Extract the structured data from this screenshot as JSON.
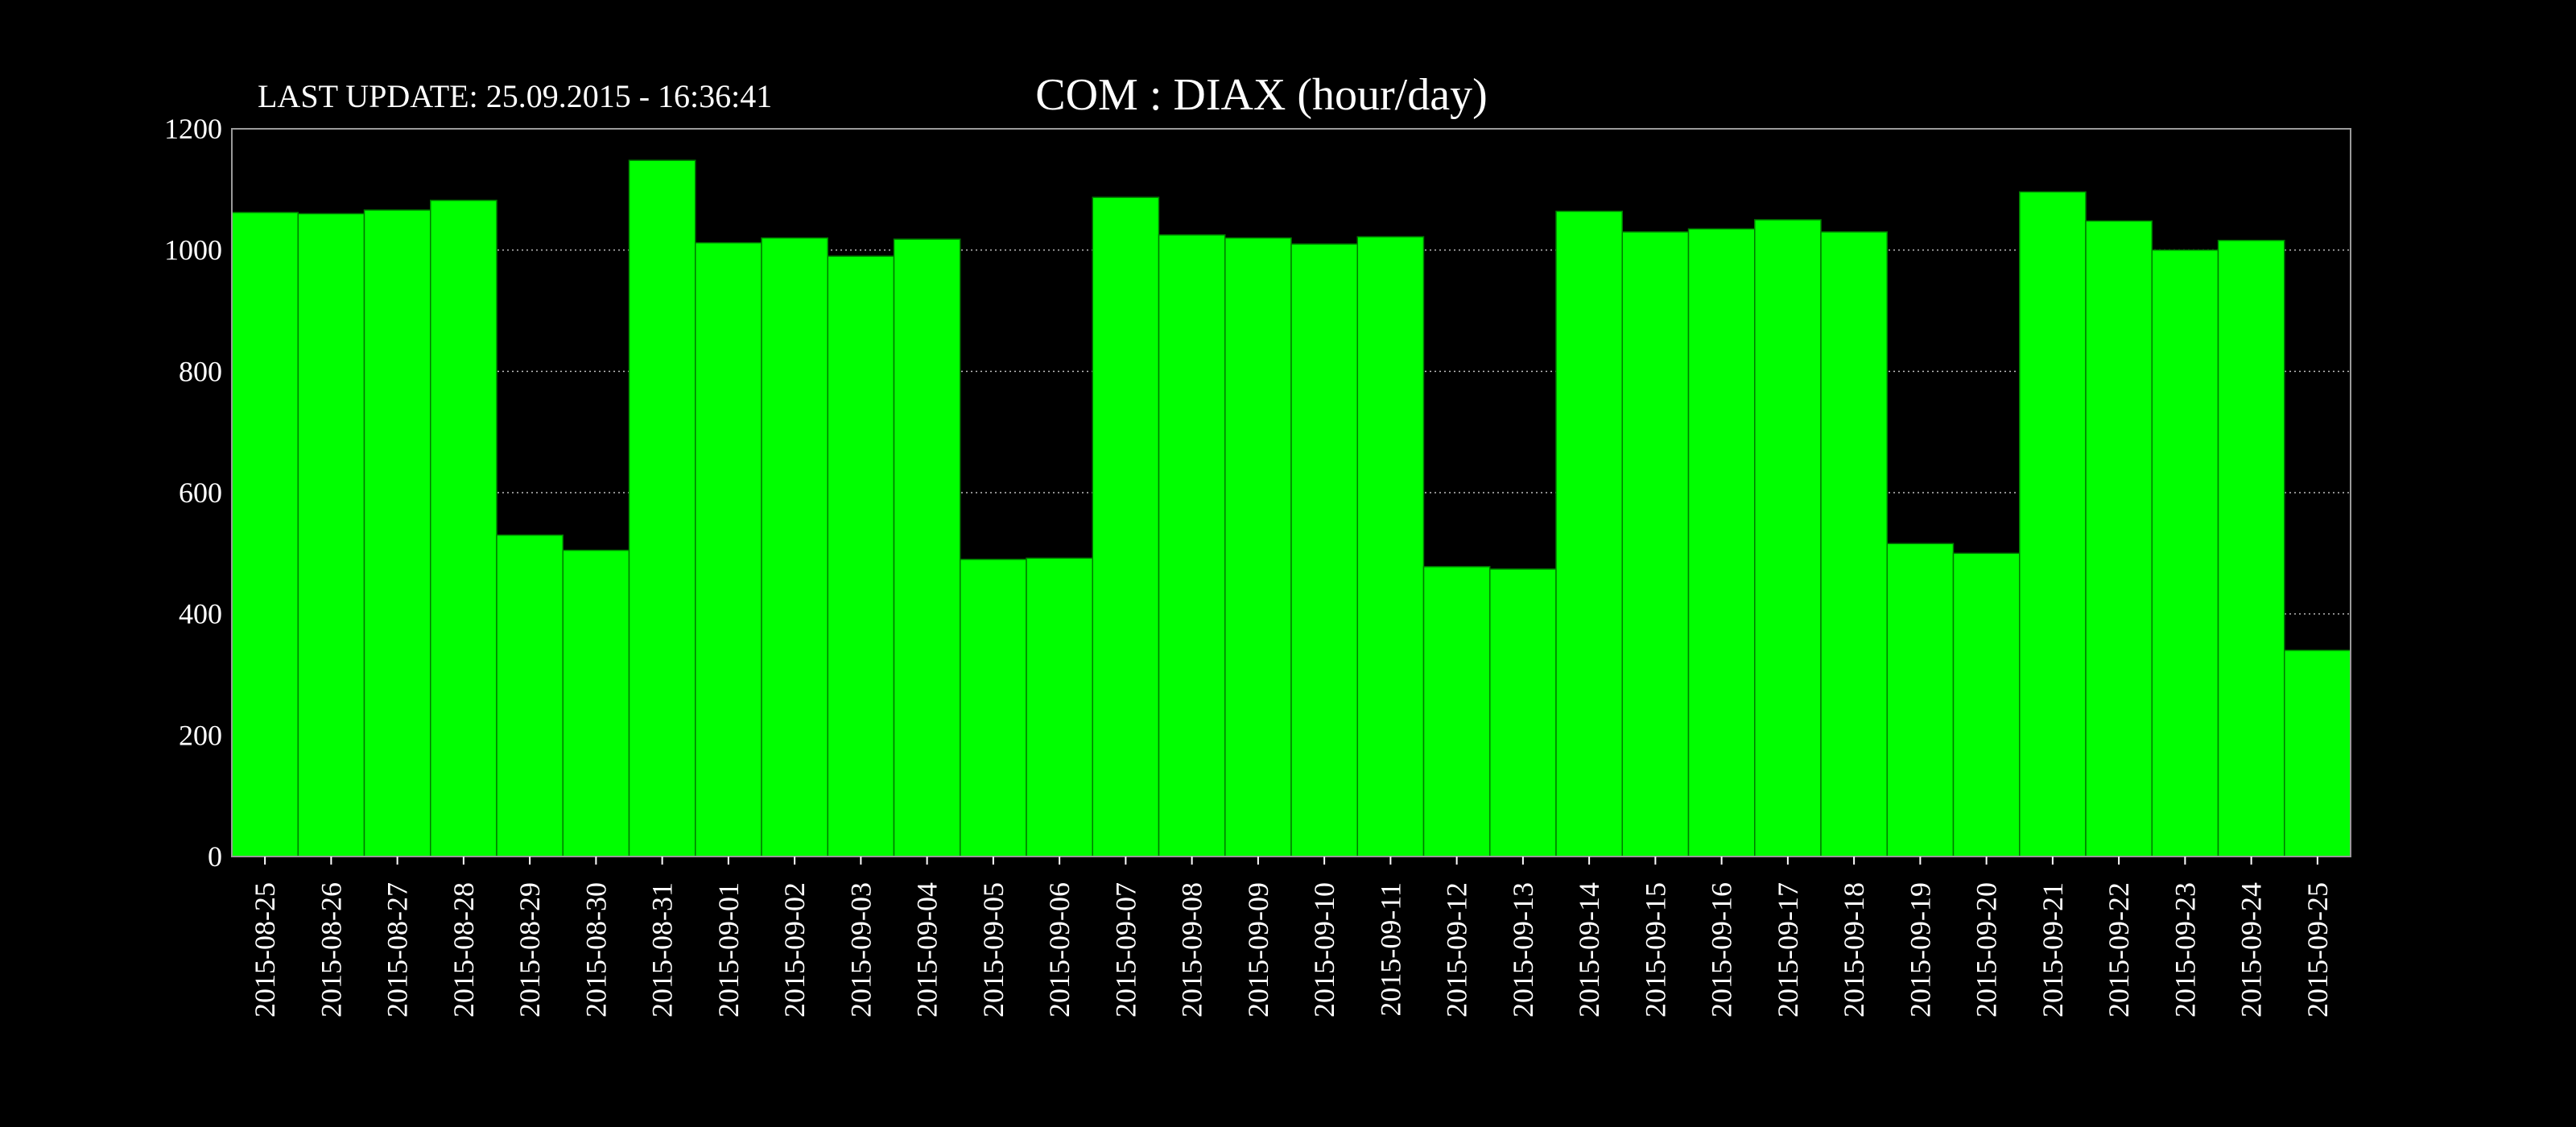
{
  "header": {
    "last_update": "LAST UPDATE: 25.09.2015 - 16:36:41",
    "title": "COM : DIAX (hour/day)"
  },
  "colors": {
    "background": "#000000",
    "bar_fill": "#00ff00",
    "bar_edge": "#007a00",
    "text": "#ffffff",
    "grid": "#bdbdbd"
  },
  "chart_data": {
    "type": "bar",
    "title": "COM : DIAX (hour/day)",
    "xlabel": "",
    "ylabel": "",
    "ylim": [
      0,
      1200
    ],
    "yticks": [
      0,
      200,
      400,
      600,
      800,
      1000,
      1200
    ],
    "grid": true,
    "legend": "none",
    "categories": [
      "2015-08-25",
      "2015-08-26",
      "2015-08-27",
      "2015-08-28",
      "2015-08-29",
      "2015-08-30",
      "2015-08-31",
      "2015-09-01",
      "2015-09-02",
      "2015-09-03",
      "2015-09-04",
      "2015-09-05",
      "2015-09-06",
      "2015-09-07",
      "2015-09-08",
      "2015-09-09",
      "2015-09-10",
      "2015-09-11",
      "2015-09-12",
      "2015-09-13",
      "2015-09-14",
      "2015-09-15",
      "2015-09-16",
      "2015-09-17",
      "2015-09-18",
      "2015-09-19",
      "2015-09-20",
      "2015-09-21",
      "2015-09-22",
      "2015-09-23",
      "2015-09-24",
      "2015-09-25"
    ],
    "values": [
      1062,
      1060,
      1066,
      1082,
      530,
      505,
      1148,
      1012,
      1020,
      990,
      1018,
      490,
      492,
      1087,
      1025,
      1020,
      1010,
      1022,
      478,
      474,
      1064,
      1030,
      1035,
      1050,
      1030,
      516,
      500,
      1096,
      1048,
      1000,
      1016,
      340
    ]
  }
}
